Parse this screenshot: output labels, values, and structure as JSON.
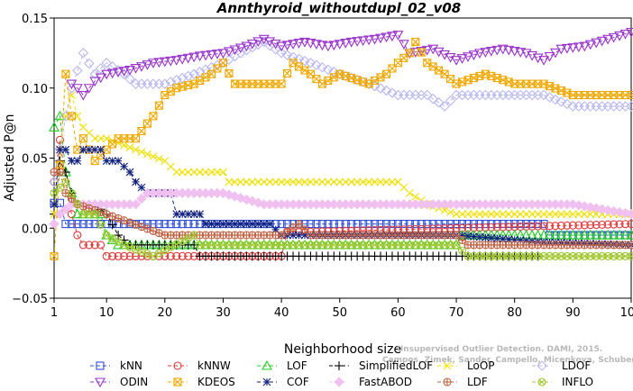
{
  "chart_data": {
    "type": "line",
    "title": "Annthyroid_withoutdupl_02_v08",
    "xlabel": "Neighborhood size",
    "ylabel": "Adjusted P@n",
    "xlim": [
      1,
      100
    ],
    "ylim": [
      -0.05,
      0.15
    ],
    "xticks": [
      1,
      10,
      20,
      30,
      40,
      50,
      60,
      70,
      80,
      90,
      100
    ],
    "yticks": [
      -0.05,
      0.0,
      0.05,
      0.1,
      0.15
    ],
    "ytick_labels": [
      "−0.05",
      "0.00",
      "0.05",
      "0.10",
      "0.15"
    ],
    "grid": false,
    "legend_position": "bottom",
    "legend_columns": 6,
    "series": [
      {
        "name": "kNN",
        "color": "#3050d8",
        "marker": "square",
        "points": [
          [
            1,
            0.018
          ],
          [
            2,
            0.018
          ],
          [
            3,
            0.003
          ],
          [
            10,
            0.003
          ],
          [
            40,
            0.003
          ],
          [
            60,
            0.003
          ],
          [
            70,
            0.003
          ],
          [
            80,
            0.003
          ],
          [
            85,
            0.003
          ],
          [
            86,
            -0.005
          ],
          [
            100,
            -0.005
          ]
        ]
      },
      {
        "name": "kNNW",
        "color": "#e03a3a",
        "marker": "circle",
        "points": [
          [
            1,
            0.033
          ],
          [
            2,
            0.063
          ],
          [
            3,
            0.033
          ],
          [
            4,
            0.01
          ],
          [
            5,
            -0.005
          ],
          [
            6,
            -0.012
          ],
          [
            9,
            -0.012
          ],
          [
            10,
            -0.02
          ],
          [
            40,
            -0.02
          ],
          [
            41,
            -0.003
          ],
          [
            100,
            0.003
          ]
        ]
      },
      {
        "name": "LOF",
        "color": "#22cc22",
        "marker": "triangle-up",
        "points": [
          [
            1,
            0.072
          ],
          [
            2,
            0.08
          ],
          [
            3,
            0.04
          ],
          [
            4,
            0.025
          ],
          [
            5,
            0.01
          ],
          [
            9,
            0.01
          ],
          [
            10,
            -0.005
          ],
          [
            12,
            -0.012
          ],
          [
            30,
            -0.012
          ],
          [
            50,
            -0.012
          ],
          [
            70,
            -0.012
          ],
          [
            71,
            -0.005
          ],
          [
            100,
            -0.005
          ]
        ]
      },
      {
        "name": "SimplifiedLOF",
        "color": "#000000",
        "marker": "plus",
        "points": [
          [
            1,
            0.01
          ],
          [
            2,
            0.048
          ],
          [
            3,
            0.04
          ],
          [
            4,
            0.025
          ],
          [
            5,
            0.017
          ],
          [
            8,
            0.017
          ],
          [
            10,
            0.01
          ],
          [
            12,
            -0.005
          ],
          [
            14,
            -0.012
          ],
          [
            25,
            -0.012
          ],
          [
            26,
            -0.02
          ],
          [
            84,
            -0.02
          ]
        ]
      },
      {
        "name": "LoOP",
        "color": "#f0e000",
        "marker": "x",
        "points": [
          [
            1,
            0.01
          ],
          [
            2,
            0.056
          ],
          [
            3,
            0.08
          ],
          [
            4,
            0.095
          ],
          [
            5,
            0.08
          ],
          [
            6,
            0.072
          ],
          [
            8,
            0.064
          ],
          [
            10,
            0.064
          ],
          [
            15,
            0.056
          ],
          [
            20,
            0.048
          ],
          [
            22,
            0.04
          ],
          [
            30,
            0.04
          ],
          [
            31,
            0.033
          ],
          [
            60,
            0.033
          ],
          [
            62,
            0.025
          ],
          [
            65,
            0.017
          ],
          [
            70,
            0.01
          ],
          [
            100,
            0.01
          ]
        ]
      },
      {
        "name": "LDOF",
        "color": "#b8b8f0",
        "marker": "diamond",
        "points": [
          [
            1,
            0.033
          ],
          [
            3,
            0.08
          ],
          [
            4,
            0.1
          ],
          [
            6,
            0.125
          ],
          [
            8,
            0.11
          ],
          [
            10,
            0.118
          ],
          [
            13,
            0.11
          ],
          [
            15,
            0.103
          ],
          [
            20,
            0.103
          ],
          [
            25,
            0.11
          ],
          [
            30,
            0.118
          ],
          [
            33,
            0.125
          ],
          [
            37,
            0.133
          ],
          [
            40,
            0.125
          ],
          [
            45,
            0.118
          ],
          [
            50,
            0.11
          ],
          [
            55,
            0.103
          ],
          [
            60,
            0.095
          ],
          [
            65,
            0.095
          ],
          [
            68,
            0.087
          ],
          [
            70,
            0.095
          ],
          [
            75,
            0.095
          ],
          [
            80,
            0.095
          ],
          [
            85,
            0.095
          ],
          [
            90,
            0.087
          ],
          [
            100,
            0.087
          ]
        ]
      },
      {
        "name": "ODIN",
        "color": "#9933cc",
        "marker": "triangle-down",
        "points": [
          [
            4,
            0.103
          ],
          [
            5,
            0.1
          ],
          [
            6,
            0.095
          ],
          [
            7,
            0.1
          ],
          [
            8,
            0.105
          ],
          [
            10,
            0.11
          ],
          [
            14,
            0.113
          ],
          [
            18,
            0.118
          ],
          [
            22,
            0.12
          ],
          [
            26,
            0.123
          ],
          [
            30,
            0.125
          ],
          [
            34,
            0.13
          ],
          [
            37,
            0.135
          ],
          [
            40,
            0.13
          ],
          [
            44,
            0.133
          ],
          [
            48,
            0.13
          ],
          [
            52,
            0.133
          ],
          [
            56,
            0.135
          ],
          [
            60,
            0.138
          ],
          [
            62,
            0.125
          ],
          [
            66,
            0.128
          ],
          [
            70,
            0.12
          ],
          [
            74,
            0.125
          ],
          [
            78,
            0.128
          ],
          [
            82,
            0.125
          ],
          [
            85,
            0.12
          ],
          [
            88,
            0.128
          ],
          [
            92,
            0.13
          ],
          [
            96,
            0.135
          ],
          [
            100,
            0.14
          ]
        ]
      },
      {
        "name": "KDEOS",
        "color": "#f0a800",
        "marker": "square-x",
        "points": [
          [
            1,
            -0.02
          ],
          [
            3,
            0.11
          ],
          [
            4,
            0.08
          ],
          [
            5,
            0.056
          ],
          [
            6,
            0.064
          ],
          [
            8,
            0.048
          ],
          [
            10,
            0.056
          ],
          [
            12,
            0.064
          ],
          [
            15,
            0.064
          ],
          [
            18,
            0.08
          ],
          [
            20,
            0.095
          ],
          [
            22,
            0.1
          ],
          [
            25,
            0.103
          ],
          [
            28,
            0.11
          ],
          [
            30,
            0.118
          ],
          [
            32,
            0.103
          ],
          [
            40,
            0.103
          ],
          [
            42,
            0.118
          ],
          [
            45,
            0.11
          ],
          [
            47,
            0.103
          ],
          [
            50,
            0.11
          ],
          [
            55,
            0.103
          ],
          [
            58,
            0.11
          ],
          [
            60,
            0.118
          ],
          [
            62,
            0.125
          ],
          [
            63,
            0.133
          ],
          [
            65,
            0.118
          ],
          [
            68,
            0.11
          ],
          [
            70,
            0.103
          ],
          [
            75,
            0.11
          ],
          [
            80,
            0.103
          ],
          [
            85,
            0.103
          ],
          [
            90,
            0.095
          ],
          [
            100,
            0.095
          ]
        ]
      },
      {
        "name": "COF",
        "color": "#102080",
        "marker": "star",
        "points": [
          [
            1,
            0.017
          ],
          [
            2,
            0.056
          ],
          [
            3,
            0.056
          ],
          [
            4,
            0.048
          ],
          [
            5,
            0.048
          ],
          [
            6,
            0.056
          ],
          [
            9,
            0.056
          ],
          [
            10,
            0.048
          ],
          [
            12,
            0.048
          ],
          [
            14,
            0.04
          ],
          [
            15,
            0.033
          ],
          [
            17,
            0.025
          ],
          [
            21,
            0.025
          ],
          [
            22,
            0.01
          ],
          [
            26,
            0.01
          ],
          [
            27,
            0.003
          ],
          [
            38,
            0.003
          ],
          [
            40,
            -0.005
          ],
          [
            60,
            -0.005
          ],
          [
            70,
            -0.005
          ],
          [
            85,
            -0.01
          ],
          [
            100,
            -0.012
          ]
        ]
      },
      {
        "name": "FastABOD",
        "color": "#f0c0f0",
        "marker": "diamond-filled",
        "points": [
          [
            1,
            0.003
          ],
          [
            2,
            0.01
          ],
          [
            4,
            0.017
          ],
          [
            10,
            0.017
          ],
          [
            15,
            0.017
          ],
          [
            17,
            0.025
          ],
          [
            30,
            0.025
          ],
          [
            37,
            0.017
          ],
          [
            60,
            0.017
          ],
          [
            80,
            0.017
          ],
          [
            90,
            0.017
          ],
          [
            100,
            0.01
          ]
        ]
      },
      {
        "name": "LDF",
        "color": "#c06040",
        "marker": "circle-plus",
        "points": [
          [
            1,
            0.04
          ],
          [
            2,
            0.04
          ],
          [
            3,
            0.025
          ],
          [
            5,
            0.017
          ],
          [
            10,
            0.01
          ],
          [
            20,
            -0.005
          ],
          [
            40,
            -0.005
          ],
          [
            43,
            0.003
          ],
          [
            45,
            -0.005
          ],
          [
            60,
            -0.005
          ],
          [
            70,
            -0.005
          ],
          [
            72,
            -0.012
          ],
          [
            80,
            -0.012
          ],
          [
            100,
            -0.012
          ]
        ]
      },
      {
        "name": "INFLO",
        "color": "#a0c830",
        "marker": "circle-x",
        "points": [
          [
            1,
            0.025
          ],
          [
            3,
            0.033
          ],
          [
            4,
            0.025
          ],
          [
            6,
            0.01
          ],
          [
            8,
            0.01
          ],
          [
            10,
            -0.005
          ],
          [
            13,
            -0.012
          ],
          [
            18,
            -0.02
          ],
          [
            25,
            -0.005
          ],
          [
            26,
            -0.012
          ],
          [
            40,
            -0.012
          ],
          [
            70,
            -0.012
          ],
          [
            72,
            -0.02
          ],
          [
            98,
            -0.02
          ],
          [
            99,
            -0.02
          ],
          [
            100,
            -0.02
          ]
        ]
      }
    ]
  },
  "watermark": {
    "line1": "Unsupervised Outlier Detection. DAMI, 2015.",
    "line2": "Campos, Zimek, Sander, Campello, Micenkova, Schubert, Assent, Houle"
  }
}
